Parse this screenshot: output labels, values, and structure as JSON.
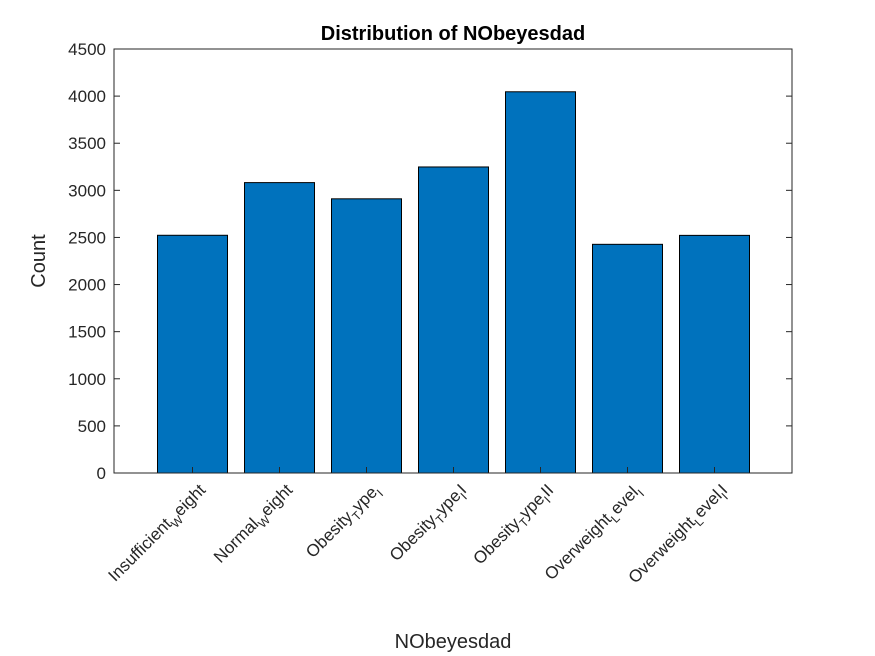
{
  "chart_data": {
    "type": "bar",
    "title": "Distribution of NObeyesdad",
    "xlabel": "NObeyesdad",
    "ylabel": "Count",
    "ylim": [
      0,
      4500
    ],
    "yticks": [
      0,
      500,
      1000,
      1500,
      2000,
      2500,
      3000,
      3500,
      4000,
      4500
    ],
    "categories": [
      {
        "main": "Insufficient",
        "sub": "W",
        "rest": "eight"
      },
      {
        "main": "Normal",
        "sub": "W",
        "rest": "eight"
      },
      {
        "main": "Obesity",
        "sub": "T",
        "rest": "ype",
        "sub2": "I",
        "rest2": ""
      },
      {
        "main": "Obesity",
        "sub": "T",
        "rest": "ype",
        "sub2": "I",
        "rest2": "I"
      },
      {
        "main": "Obesity",
        "sub": "T",
        "rest": "ype",
        "sub2": "I",
        "rest2": "II"
      },
      {
        "main": "Overweight",
        "sub": "L",
        "rest": "evel",
        "sub2": "I",
        "rest2": ""
      },
      {
        "main": "Overweight",
        "sub": "L",
        "rest": "evel",
        "sub2": "I",
        "rest2": "I"
      }
    ],
    "values": [
      2523,
      3082,
      2910,
      3248,
      4046,
      2427,
      2522
    ],
    "grid": false,
    "colors": {
      "bar": "#0072BD",
      "edge": "#000000",
      "axis": "#262626"
    }
  }
}
